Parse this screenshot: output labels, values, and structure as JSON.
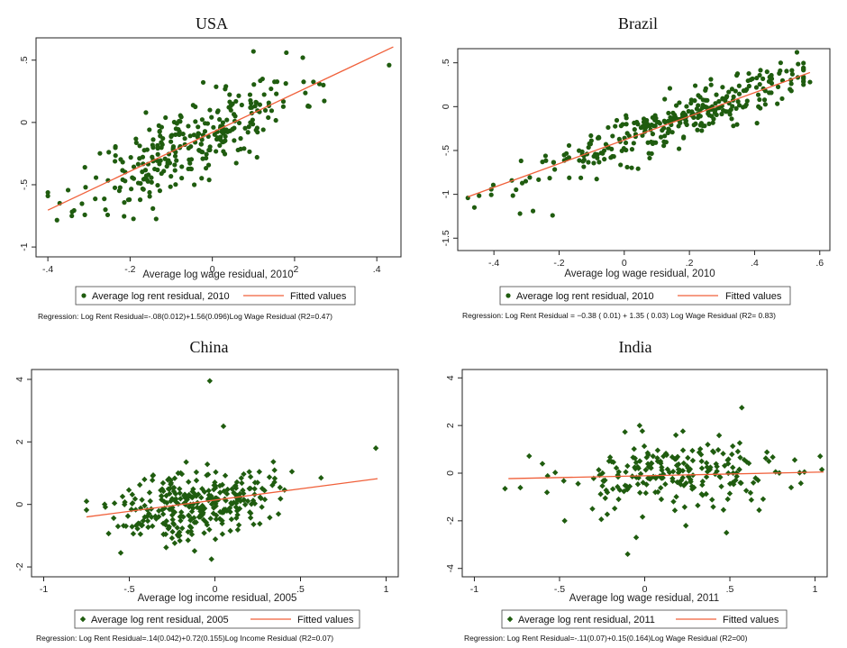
{
  "colors": {
    "point": "#1f5c0f",
    "fit": "#f0603a",
    "frame": "#222222"
  },
  "chart_data": [
    {
      "type": "scatter",
      "title": "USA",
      "xlabel": "Average log wage residual, 2010",
      "ylabel": "",
      "xlim": [
        -0.42,
        0.45
      ],
      "ylim": [
        -1.05,
        0.65
      ],
      "xticks": [
        -0.4,
        -0.2,
        0,
        0.2,
        0.4
      ],
      "xtick_labels": [
        "-.4",
        "-.2",
        "0",
        ".2",
        ".4"
      ],
      "yticks": [
        -1,
        -0.5,
        0,
        0.5
      ],
      "ytick_labels": [
        "-1",
        "-.5",
        "0",
        ".5"
      ],
      "marker": "circle",
      "fit": {
        "intercept": -0.08,
        "slope": 1.56,
        "x_range": [
          -0.4,
          0.44
        ]
      },
      "legend": {
        "points": "Average log rent residual, 2010",
        "fit": "Fitted values"
      },
      "note": "Regression: Log Rent Residual=-.08(0.012)+1.56(0.096)Log Wage Residual (R2=0.47)",
      "seed": 11,
      "n": 300,
      "x_center": -0.05,
      "x_spread": 0.13,
      "noise": 0.16,
      "points": [
        [
          -0.4,
          -0.59
        ],
        [
          0.43,
          0.46
        ],
        [
          -0.31,
          -0.36
        ],
        [
          -0.26,
          -0.7
        ],
        [
          0.1,
          0.57
        ],
        [
          0.18,
          0.56
        ],
        [
          0.22,
          0.52
        ],
        [
          0.27,
          0.3
        ]
      ]
    },
    {
      "type": "scatter",
      "title": "Brazil",
      "xlabel": "Average log wage residual, 2010",
      "ylabel": "",
      "xlim": [
        -0.5,
        0.62
      ],
      "ylim": [
        -1.6,
        0.62
      ],
      "xticks": [
        -0.4,
        -0.2,
        0,
        0.2,
        0.4,
        0.6
      ],
      "xtick_labels": [
        "-.4",
        "-.2",
        "0",
        ".2",
        ".4",
        ".6"
      ],
      "yticks": [
        -1.5,
        -1,
        -0.5,
        0,
        0.5
      ],
      "ytick_labels": [
        "-1.5",
        "-1",
        "-.5",
        "0",
        ".5"
      ],
      "marker": "circle",
      "fit": {
        "intercept": -0.38,
        "slope": 1.35,
        "x_range": [
          -0.48,
          0.57
        ]
      },
      "legend": {
        "points": "Average log rent residual, 2010",
        "fit": "Fitted values"
      },
      "note": "Regression: Log Rent Residual = −0.38 ( 0.01) +  1.35 ( 0.03) Log Wage Residual (R2= 0.83)",
      "seed": 23,
      "n": 330,
      "x_center": 0.15,
      "x_spread": 0.22,
      "noise": 0.13,
      "points": [
        [
          -0.46,
          -1.15
        ],
        [
          -0.32,
          -1.22
        ],
        [
          -0.28,
          -1.19
        ],
        [
          -0.22,
          -1.24
        ],
        [
          0.53,
          0.62
        ],
        [
          0.55,
          0.44
        ],
        [
          0.57,
          0.28
        ],
        [
          0.48,
          0.5
        ]
      ]
    },
    {
      "type": "scatter",
      "title": "China",
      "xlabel": "Average log income residual, 2005",
      "ylabel": "",
      "xlim": [
        -1.05,
        1.05
      ],
      "ylim": [
        -2.2,
        4.2
      ],
      "xticks": [
        -1,
        -0.5,
        0,
        0.5,
        1
      ],
      "xtick_labels": [
        "-1",
        "-.5",
        "0",
        ".5",
        "1"
      ],
      "yticks": [
        -2,
        0,
        2,
        4
      ],
      "ytick_labels": [
        "-2",
        "0",
        "2",
        "4"
      ],
      "marker": "diamond",
      "fit": {
        "intercept": 0.14,
        "slope": 0.72,
        "x_range": [
          -0.75,
          0.95
        ]
      },
      "legend": {
        "points": "Average log rent residual, 2005",
        "fit": "Fitted values"
      },
      "note": "Regression: Log Rent Residual=.14(0.042)+0.72(0.155)Log Income Residual (R2=0.07)",
      "seed": 37,
      "n": 310,
      "x_center": -0.12,
      "x_spread": 0.22,
      "noise": 0.55,
      "points": [
        [
          -0.03,
          3.95
        ],
        [
          0.05,
          2.5
        ],
        [
          0.94,
          1.8
        ],
        [
          -0.75,
          0.1
        ],
        [
          -0.55,
          -1.55
        ],
        [
          -0.02,
          -1.75
        ],
        [
          0.62,
          0.85
        ],
        [
          0.45,
          1.05
        ]
      ]
    },
    {
      "type": "scatter",
      "title": "India",
      "xlabel": "Average log wage residual, 2011",
      "ylabel": "",
      "xlim": [
        -1.05,
        1.05
      ],
      "ylim": [
        -4.2,
        4.2
      ],
      "xticks": [
        -1,
        -0.5,
        0,
        0.5,
        1
      ],
      "xtick_labels": [
        "-1",
        "-.5",
        "0",
        ".5",
        "1"
      ],
      "yticks": [
        -4,
        -2,
        0,
        2,
        4
      ],
      "ytick_labels": [
        "-4",
        "-2",
        "0",
        "2",
        "4"
      ],
      "marker": "diamond",
      "fit": {
        "intercept": -0.11,
        "slope": 0.15,
        "x_range": [
          -0.8,
          1.05
        ]
      },
      "legend": {
        "points": "Average log rent residual, 2011",
        "fit": "Fitted values"
      },
      "note": "Regression: Log Rent Residual=-.11(0.07)+0.15(0.164)Log Wage Residual (R2=00)",
      "seed": 53,
      "n": 230,
      "x_center": 0.2,
      "x_spread": 0.35,
      "noise": 0.75,
      "points": [
        [
          -0.1,
          -3.4
        ],
        [
          -0.05,
          -2.7
        ],
        [
          0.57,
          2.75
        ],
        [
          0.48,
          -2.5
        ],
        [
          -0.03,
          2.0
        ],
        [
          -0.82,
          -0.65
        ],
        [
          1.04,
          0.15
        ],
        [
          -0.47,
          -2.0
        ]
      ]
    }
  ]
}
